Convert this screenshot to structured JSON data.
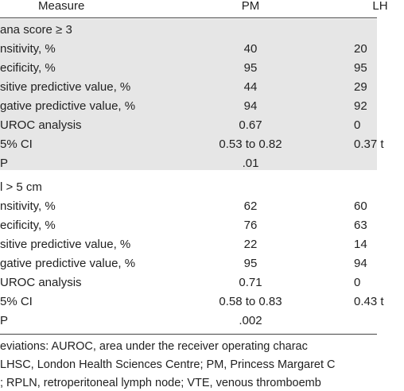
{
  "table": {
    "header": [
      "Measure",
      "PM",
      "LH"
    ],
    "sections": [
      {
        "label": "ana score ≥ 3",
        "rows": [
          [
            "nsitivity, %",
            "40",
            "20"
          ],
          [
            "ecificity, %",
            "95",
            "95"
          ],
          [
            "sitive predictive value, %",
            "44",
            "29"
          ],
          [
            "gative predictive value, %",
            "94",
            "92"
          ],
          [
            "UROC analysis",
            "0.67",
            "0"
          ],
          [
            "5% CI",
            "0.53 to 0.82",
            "0.37 t"
          ],
          [
            "P",
            ".01",
            ""
          ]
        ]
      },
      {
        "label": "l > 5 cm",
        "rows": [
          [
            "nsitivity, %",
            "62",
            "60"
          ],
          [
            "ecificity, %",
            "76",
            "63"
          ],
          [
            "sitive predictive value, %",
            "22",
            "14"
          ],
          [
            "gative predictive value, %",
            "95",
            "94"
          ],
          [
            "UROC analysis",
            "0.71",
            "0"
          ],
          [
            "5% CI",
            "0.58 to 0.83",
            "0.43 t"
          ],
          [
            "P",
            ".002",
            ""
          ]
        ]
      }
    ]
  },
  "footnote": [
    "eviations: AUROC, area under the receiver operating charac",
    "LHSC, London Health Sciences Centre; PM, Princess Margaret C",
    "; RPLN, retroperitoneal lymph node; VTE, venous thromboemb"
  ]
}
